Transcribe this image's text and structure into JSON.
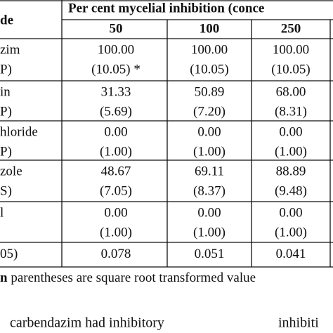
{
  "table": {
    "header": {
      "group": "Per cent mycelial inhibition (conce",
      "stub": "de",
      "columns": [
        "50",
        "100",
        "250"
      ]
    },
    "rows": [
      {
        "label": [
          "zim",
          "P)"
        ],
        "cells": [
          [
            "100.00",
            "(10.05) *"
          ],
          [
            "100.00",
            "(10.05)"
          ],
          [
            "100.00",
            "(10.05)"
          ]
        ]
      },
      {
        "label": [
          "in",
          "P)"
        ],
        "cells": [
          [
            "31.33",
            "(5.69)"
          ],
          [
            "50.89",
            "(7.20)"
          ],
          [
            "68.00",
            "(8.31)"
          ]
        ]
      },
      {
        "label": [
          "hloride",
          "P)"
        ],
        "cells": [
          [
            "0.00",
            "(1.00)"
          ],
          [
            "0.00",
            "(1.00)"
          ],
          [
            "0.00",
            "(1.00)"
          ]
        ]
      },
      {
        "label": [
          "zole",
          "S)"
        ],
        "cells": [
          [
            "48.67",
            "(7.05)"
          ],
          [
            "69.11",
            "(8.37)"
          ],
          [
            "88.89",
            "(9.48)"
          ]
        ]
      },
      {
        "label": [
          "l"
        ],
        "cells": [
          [
            "0.00",
            "(1.00)"
          ],
          [
            "0.00",
            "(1.00)"
          ],
          [
            "0.00",
            "(1.00)"
          ]
        ]
      },
      {
        "label": [
          "05)"
        ],
        "cells": [
          [
            "0.078"
          ],
          [
            "0.051"
          ],
          [
            "0.041"
          ]
        ]
      }
    ]
  },
  "footnote": {
    "marker": "n",
    "text": " parentheses are square root transformed value"
  },
  "body": {
    "left": "carbendazim had inhibitory",
    "right": "inhibiti"
  }
}
